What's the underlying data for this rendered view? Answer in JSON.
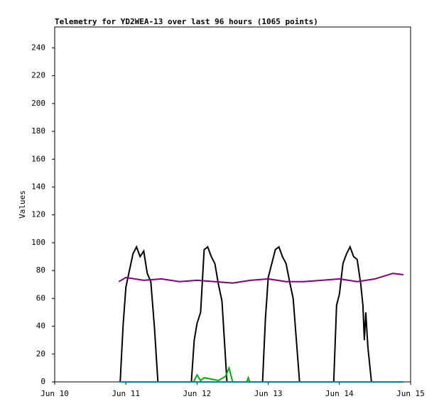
{
  "chart_data": {
    "type": "line",
    "title": "Telemetry for YD2WEA-13 over last 96 hours (1065 points)",
    "y_label": "Values",
    "xlim": [
      10,
      15
    ],
    "xticks": [
      {
        "value": 10,
        "label": "Jun 10"
      },
      {
        "value": 11,
        "label": "Jun 11"
      },
      {
        "value": 12,
        "label": "Jun 12"
      },
      {
        "value": 13,
        "label": "Jun 13"
      },
      {
        "value": 14,
        "label": "Jun 14"
      },
      {
        "value": 15,
        "label": "Jun 15"
      }
    ],
    "ylim": [
      0,
      255
    ],
    "yticks": [
      0,
      20,
      40,
      60,
      80,
      100,
      120,
      140,
      160,
      180,
      200,
      220,
      240
    ],
    "series": [
      {
        "color": "#000000",
        "x": [
          10.9,
          10.92,
          10.96,
          11.0,
          11.05,
          11.1,
          11.15,
          11.2,
          11.25,
          11.3,
          11.35,
          11.4,
          11.45,
          11.9,
          11.92,
          11.96,
          12.0,
          12.05,
          12.1,
          12.15,
          12.2,
          12.25,
          12.3,
          12.35,
          12.42,
          12.9,
          12.92,
          12.96,
          13.0,
          13.05,
          13.1,
          13.15,
          13.2,
          13.25,
          13.3,
          13.35,
          13.44,
          13.9,
          13.92,
          13.96,
          14.0,
          14.05,
          14.1,
          14.15,
          14.2,
          14.25,
          14.3,
          14.33,
          14.35,
          14.37,
          14.4,
          14.45,
          14.9
        ],
        "values": [
          0,
          0,
          40,
          68,
          80,
          92,
          97,
          90,
          94,
          78,
          72,
          40,
          0,
          0,
          0,
          30,
          42,
          50,
          95,
          97,
          90,
          85,
          70,
          58,
          0,
          0,
          0,
          45,
          75,
          85,
          95,
          97,
          90,
          85,
          72,
          60,
          0,
          0,
          0,
          55,
          63,
          85,
          92,
          97,
          90,
          88,
          70,
          55,
          30,
          50,
          25,
          0,
          0
        ]
      },
      {
        "color": "#800080",
        "x": [
          10.9,
          11.0,
          11.25,
          11.5,
          11.75,
          12.0,
          12.25,
          12.5,
          12.75,
          13.0,
          13.25,
          13.5,
          13.75,
          14.0,
          14.25,
          14.5,
          14.75,
          14.9
        ],
        "values": [
          72,
          75,
          73,
          74,
          72,
          73,
          72,
          71,
          73,
          74,
          72,
          72,
          73,
          74,
          72,
          74,
          78,
          77
        ]
      },
      {
        "color": "#00b000",
        "x": [
          10.9,
          11.95,
          12.0,
          12.05,
          12.1,
          12.3,
          12.4,
          12.45,
          12.5,
          12.7,
          12.72,
          12.74,
          14.9
        ],
        "values": [
          0,
          0,
          5,
          1,
          3,
          1,
          4,
          10,
          0,
          0,
          3,
          0,
          0
        ]
      },
      {
        "color": "#0080c0",
        "x": [
          10.9,
          14.9
        ],
        "values": [
          0,
          0
        ]
      }
    ]
  }
}
